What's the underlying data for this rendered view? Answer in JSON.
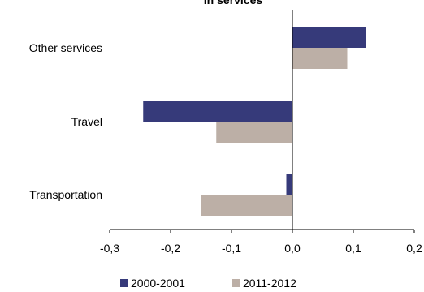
{
  "chart_data": {
    "type": "bar",
    "orientation": "horizontal",
    "title": "in services",
    "categories": [
      "Other services",
      "Travel",
      "Transportation"
    ],
    "series": [
      {
        "name": "2000-2001",
        "color": "#363A7A",
        "values": [
          0.12,
          -0.245,
          -0.01
        ]
      },
      {
        "name": "2011-2012",
        "color": "#BCAFA6",
        "values": [
          0.09,
          -0.125,
          -0.15
        ]
      }
    ],
    "xlim": [
      -0.3,
      0.2
    ],
    "xticks": [
      "-0,3",
      "-0,2",
      "-0,1",
      "0,0",
      "0,1",
      "0,2"
    ],
    "xlabel": "",
    "ylabel": "",
    "grid": false,
    "legend_position": "bottom"
  }
}
